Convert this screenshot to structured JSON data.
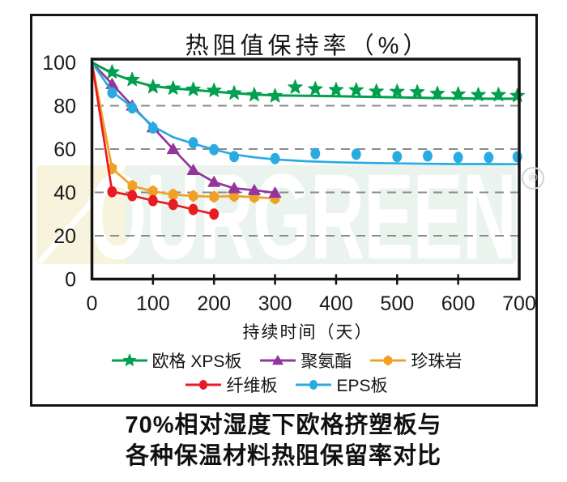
{
  "title": "热阻值保持率（%）",
  "watermark": {
    "text": "OURGREEN",
    "registered": "®"
  },
  "caption": {
    "line1": "70%相对湿度下欧格挤塑板与",
    "line2": "各种保温材料热阻保留率对比"
  },
  "colors": {
    "xps_green": "#00A04E",
    "pu_purple": "#93359A",
    "perlite_orange": "#F0A024",
    "fiberboard_red": "#E81B23",
    "eps_blue": "#29ABE2",
    "gridline_gray": "#8B8B8B",
    "axis_black": "#141414",
    "watermark_band": "#EAF3ED",
    "watermark_cream": "#F7F3DC"
  },
  "chart_data": {
    "type": "line",
    "title": "热阻值保持率（%）",
    "xlabel": "持续时间（天）",
    "ylabel": "",
    "xlim": [
      0,
      700
    ],
    "ylim": [
      0,
      100
    ],
    "grid": "horizontal dashed at 20, 40, 60, 80",
    "legend_position": "bottom",
    "x_axis": {
      "label": "持续时间（天）",
      "ticks": [
        0,
        100,
        200,
        300,
        400,
        500,
        600,
        700
      ]
    },
    "y_axis": {
      "ticks": [
        100,
        80,
        60,
        40,
        20,
        0
      ]
    },
    "series": [
      {
        "key": "xps",
        "name": "欧格 XPS板",
        "color": "#00A04E",
        "marker": "star",
        "line": [
          [
            0,
            100
          ],
          [
            33,
            95
          ],
          [
            66,
            91.5
          ],
          [
            100,
            89
          ],
          [
            133,
            88
          ],
          [
            166,
            87.3
          ],
          [
            200,
            86.5
          ],
          [
            233,
            85.8
          ],
          [
            266,
            85.2
          ],
          [
            300,
            84.8
          ],
          [
            350,
            84.6
          ],
          [
            400,
            84.4
          ],
          [
            450,
            84.1
          ],
          [
            500,
            83.9
          ],
          [
            550,
            83.6
          ],
          [
            600,
            83.4
          ],
          [
            650,
            83.2
          ],
          [
            700,
            83.2
          ]
        ],
        "points": [
          [
            33,
            95.5
          ],
          [
            66,
            92
          ],
          [
            100,
            88.7
          ],
          [
            133,
            88
          ],
          [
            166,
            87.5
          ],
          [
            200,
            87
          ],
          [
            233,
            85.8
          ],
          [
            266,
            85
          ],
          [
            300,
            84.5
          ],
          [
            333,
            88.5
          ],
          [
            366,
            87.7
          ],
          [
            400,
            87.3
          ],
          [
            433,
            87.2
          ],
          [
            466,
            86.6
          ],
          [
            500,
            86.5
          ],
          [
            533,
            86.3
          ],
          [
            566,
            85.6
          ],
          [
            600,
            85.3
          ],
          [
            633,
            85
          ],
          [
            666,
            85
          ],
          [
            697,
            84.6
          ]
        ]
      },
      {
        "key": "pu",
        "name": "聚氨酯",
        "color": "#93359A",
        "marker": "triangle",
        "line": [
          [
            0,
            100
          ],
          [
            33,
            90
          ],
          [
            66,
            80
          ],
          [
            100,
            70
          ],
          [
            133,
            60
          ],
          [
            166,
            50.3
          ],
          [
            200,
            44.8
          ],
          [
            233,
            41.9
          ],
          [
            266,
            41
          ],
          [
            300,
            39.8
          ]
        ],
        "points": [
          [
            33,
            90
          ],
          [
            66,
            80
          ],
          [
            100,
            70
          ],
          [
            133,
            60
          ],
          [
            166,
            50.3
          ],
          [
            200,
            44.8
          ],
          [
            233,
            41.9
          ],
          [
            266,
            41
          ],
          [
            300,
            39.8
          ]
        ]
      },
      {
        "key": "perlite",
        "name": "珍珠岩",
        "color": "#F0A024",
        "marker": "hexagon",
        "line": [
          [
            0,
            100
          ],
          [
            33,
            51
          ],
          [
            66,
            43
          ],
          [
            100,
            40.5
          ],
          [
            133,
            39
          ],
          [
            166,
            38.3
          ],
          [
            200,
            38
          ],
          [
            233,
            38.3
          ],
          [
            266,
            37.8
          ],
          [
            300,
            37.2
          ]
        ],
        "points": [
          [
            33,
            51
          ],
          [
            66,
            43
          ],
          [
            100,
            40.5
          ],
          [
            133,
            39
          ],
          [
            166,
            38.3
          ],
          [
            200,
            38
          ],
          [
            233,
            38.3
          ],
          [
            266,
            37.8
          ],
          [
            300,
            37.2
          ]
        ]
      },
      {
        "key": "fiberboard",
        "name": "纤维板",
        "color": "#E81B23",
        "marker": "circle",
        "line": [
          [
            0,
            100
          ],
          [
            33,
            40.3
          ],
          [
            66,
            38.5
          ],
          [
            100,
            36.2
          ],
          [
            133,
            34.4
          ],
          [
            166,
            32.1
          ],
          [
            200,
            30
          ]
        ],
        "points": [
          [
            33,
            40.3
          ],
          [
            66,
            38.5
          ],
          [
            100,
            36.2
          ],
          [
            133,
            34.4
          ],
          [
            166,
            32.1
          ],
          [
            200,
            30
          ]
        ]
      },
      {
        "key": "eps",
        "name": "EPS板",
        "color": "#29ABE2",
        "marker": "circle",
        "line": [
          [
            0,
            100
          ],
          [
            33,
            86.5
          ],
          [
            66,
            79.3
          ],
          [
            100,
            70.5
          ],
          [
            133,
            65.5
          ],
          [
            166,
            62.5
          ],
          [
            200,
            59.8
          ],
          [
            233,
            57.5
          ],
          [
            266,
            56.2
          ],
          [
            300,
            55.2
          ],
          [
            350,
            54.4
          ],
          [
            400,
            53.9
          ],
          [
            450,
            53.6
          ],
          [
            500,
            53.4
          ],
          [
            550,
            53.2
          ],
          [
            600,
            53.1
          ],
          [
            650,
            53.1
          ],
          [
            700,
            53
          ]
        ],
        "points": [
          [
            33,
            86
          ],
          [
            66,
            79
          ],
          [
            100,
            69.7
          ],
          [
            166,
            62.9
          ],
          [
            200,
            59.7
          ],
          [
            233,
            56.5
          ],
          [
            300,
            55.6
          ],
          [
            366,
            57.9
          ],
          [
            433,
            57.6
          ],
          [
            500,
            56.5
          ],
          [
            550,
            56.8
          ],
          [
            600,
            56.1
          ],
          [
            650,
            56.1
          ],
          [
            697,
            56.4
          ]
        ]
      }
    ]
  }
}
